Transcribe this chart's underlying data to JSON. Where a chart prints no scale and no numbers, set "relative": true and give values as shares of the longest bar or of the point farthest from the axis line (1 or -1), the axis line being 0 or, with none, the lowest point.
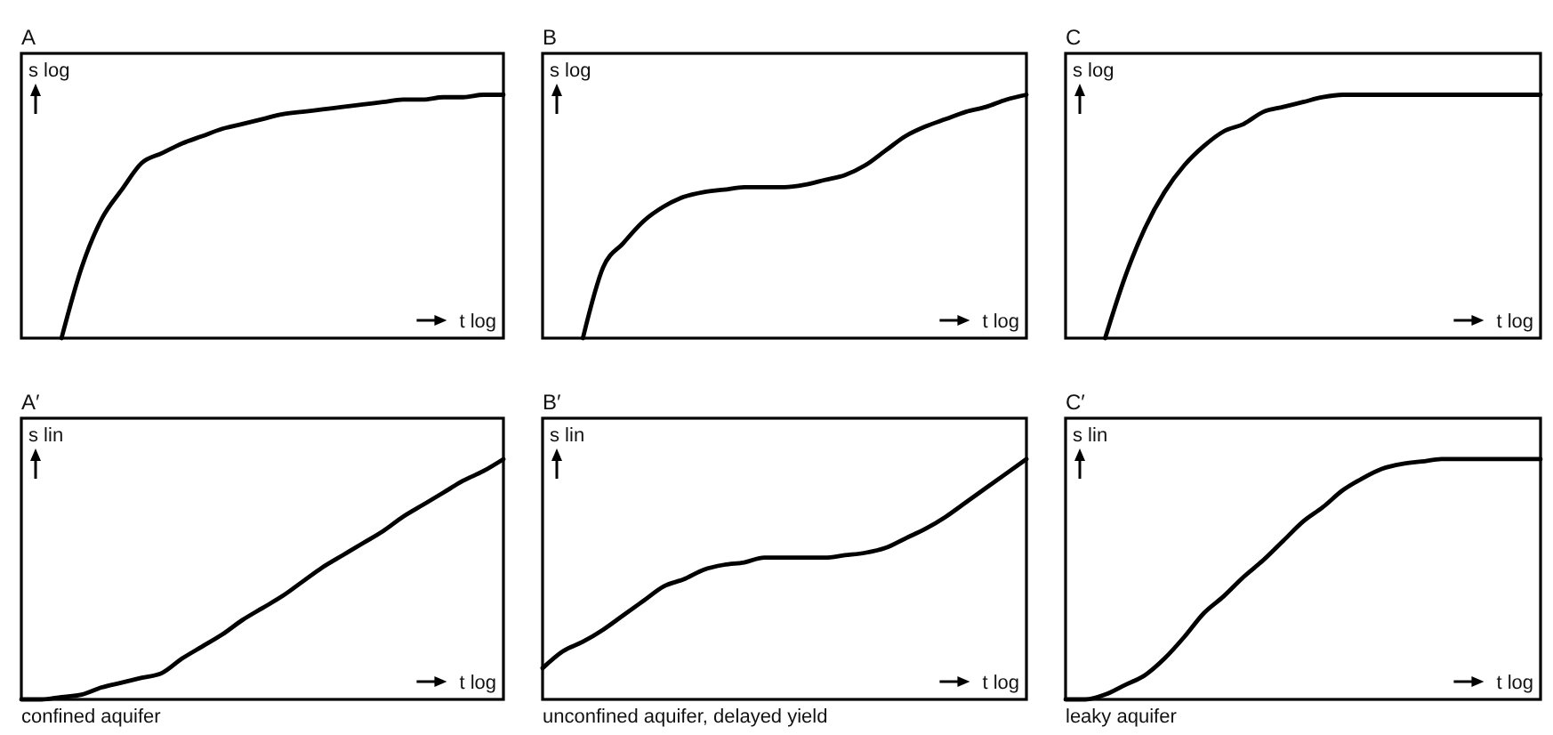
{
  "chart_data": [
    {
      "type": "line",
      "title": "A",
      "ylabel": "s log",
      "xlabel": "t log",
      "relative": true,
      "marker": "none",
      "line_style": "solid",
      "categories": [
        null,
        null,
        null,
        null,
        null,
        null,
        null,
        null,
        null,
        null,
        null,
        null,
        null,
        null,
        null,
        null,
        null,
        null,
        null,
        null,
        null,
        null,
        null,
        null,
        null
      ],
      "series": [
        {
          "color": "#000000",
          "values": [
            null,
            null,
            0,
            0.29,
            0.49,
            0.61,
            0.72,
            0.76,
            0.8,
            0.83,
            0.86,
            0.88,
            0.9,
            0.92,
            0.93,
            0.94,
            0.95,
            0.96,
            0.97,
            0.98,
            0.98,
            0.99,
            0.99,
            1.0,
            1.0
          ]
        }
      ]
    },
    {
      "type": "line",
      "title": "B",
      "ylabel": "s log",
      "xlabel": "t log",
      "relative": true,
      "marker": "none",
      "line_style": "solid",
      "categories": [
        null,
        null,
        null,
        null,
        null,
        null,
        null,
        null,
        null,
        null,
        null,
        null,
        null,
        null,
        null,
        null,
        null,
        null,
        null,
        null,
        null,
        null,
        null,
        null,
        null
      ],
      "series": [
        {
          "color": "#000000",
          "values": [
            null,
            null,
            0,
            0.29,
            0.39,
            0.48,
            0.54,
            0.58,
            0.6,
            0.61,
            0.62,
            0.62,
            0.62,
            0.63,
            0.65,
            0.67,
            0.71,
            0.77,
            0.83,
            0.87,
            0.9,
            0.93,
            0.95,
            0.98,
            1.0
          ]
        }
      ]
    },
    {
      "type": "line",
      "title": "C",
      "ylabel": "s log",
      "xlabel": "t log",
      "relative": true,
      "marker": "none",
      "line_style": "solid",
      "categories": [
        null,
        null,
        null,
        null,
        null,
        null,
        null,
        null,
        null,
        null,
        null,
        null,
        null,
        null,
        null,
        null,
        null,
        null,
        null,
        null,
        null,
        null,
        null,
        null,
        null
      ],
      "series": [
        {
          "color": "#000000",
          "values": [
            null,
            null,
            0,
            0.25,
            0.45,
            0.6,
            0.71,
            0.79,
            0.85,
            0.88,
            0.93,
            0.95,
            0.97,
            0.99,
            1.0,
            1.0,
            1.0,
            1.0,
            1.0,
            1.0,
            1.0,
            1.0,
            1.0,
            1.0,
            1.0
          ]
        }
      ]
    },
    {
      "type": "line",
      "title": "A′",
      "ylabel": "s lin",
      "xlabel": "t log",
      "relative": true,
      "marker": "none",
      "line_style": "solid",
      "annotations": [
        "confined aquifer"
      ],
      "categories": [
        null,
        null,
        null,
        null,
        null,
        null,
        null,
        null,
        null,
        null,
        null,
        null,
        null,
        null,
        null,
        null,
        null,
        null,
        null,
        null,
        null,
        null,
        null,
        null,
        null
      ],
      "series": [
        {
          "color": "#000000",
          "values": [
            0,
            0,
            0.01,
            0.02,
            0.05,
            0.07,
            0.09,
            0.11,
            0.17,
            0.22,
            0.27,
            0.33,
            0.38,
            0.43,
            0.49,
            0.55,
            0.6,
            0.65,
            0.7,
            0.76,
            0.81,
            0.86,
            0.91,
            0.95,
            1.0
          ]
        }
      ]
    },
    {
      "type": "line",
      "title": "B′",
      "ylabel": "s lin",
      "xlabel": "t log",
      "relative": true,
      "marker": "none",
      "line_style": "solid",
      "annotations": [
        "unconfined aquifer, delayed yield"
      ],
      "categories": [
        null,
        null,
        null,
        null,
        null,
        null,
        null,
        null,
        null,
        null,
        null,
        null,
        null,
        null,
        null,
        null,
        null,
        null,
        null,
        null,
        null,
        null,
        null,
        null,
        null
      ],
      "series": [
        {
          "color": "#000000",
          "values": [
            0.13,
            0.2,
            0.24,
            0.29,
            0.35,
            0.41,
            0.47,
            0.5,
            0.54,
            0.56,
            0.57,
            0.59,
            0.59,
            0.59,
            0.59,
            0.6,
            0.61,
            0.63,
            0.67,
            0.71,
            0.76,
            0.82,
            0.88,
            0.94,
            1.0
          ]
        }
      ]
    },
    {
      "type": "line",
      "title": "C′",
      "ylabel": "s lin",
      "xlabel": "t log",
      "relative": true,
      "marker": "none",
      "line_style": "solid",
      "annotations": [
        "leaky aquifer"
      ],
      "categories": [
        null,
        null,
        null,
        null,
        null,
        null,
        null,
        null,
        null,
        null,
        null,
        null,
        null,
        null,
        null,
        null,
        null,
        null,
        null,
        null,
        null,
        null,
        null,
        null,
        null
      ],
      "series": [
        {
          "color": "#000000",
          "values": [
            0,
            0,
            0.02,
            0.06,
            0.1,
            0.17,
            0.26,
            0.36,
            0.43,
            0.51,
            0.58,
            0.66,
            0.74,
            0.8,
            0.87,
            0.92,
            0.96,
            0.98,
            0.99,
            1.0,
            1.0,
            1.0,
            1.0,
            1.0,
            1.0
          ]
        }
      ]
    }
  ]
}
